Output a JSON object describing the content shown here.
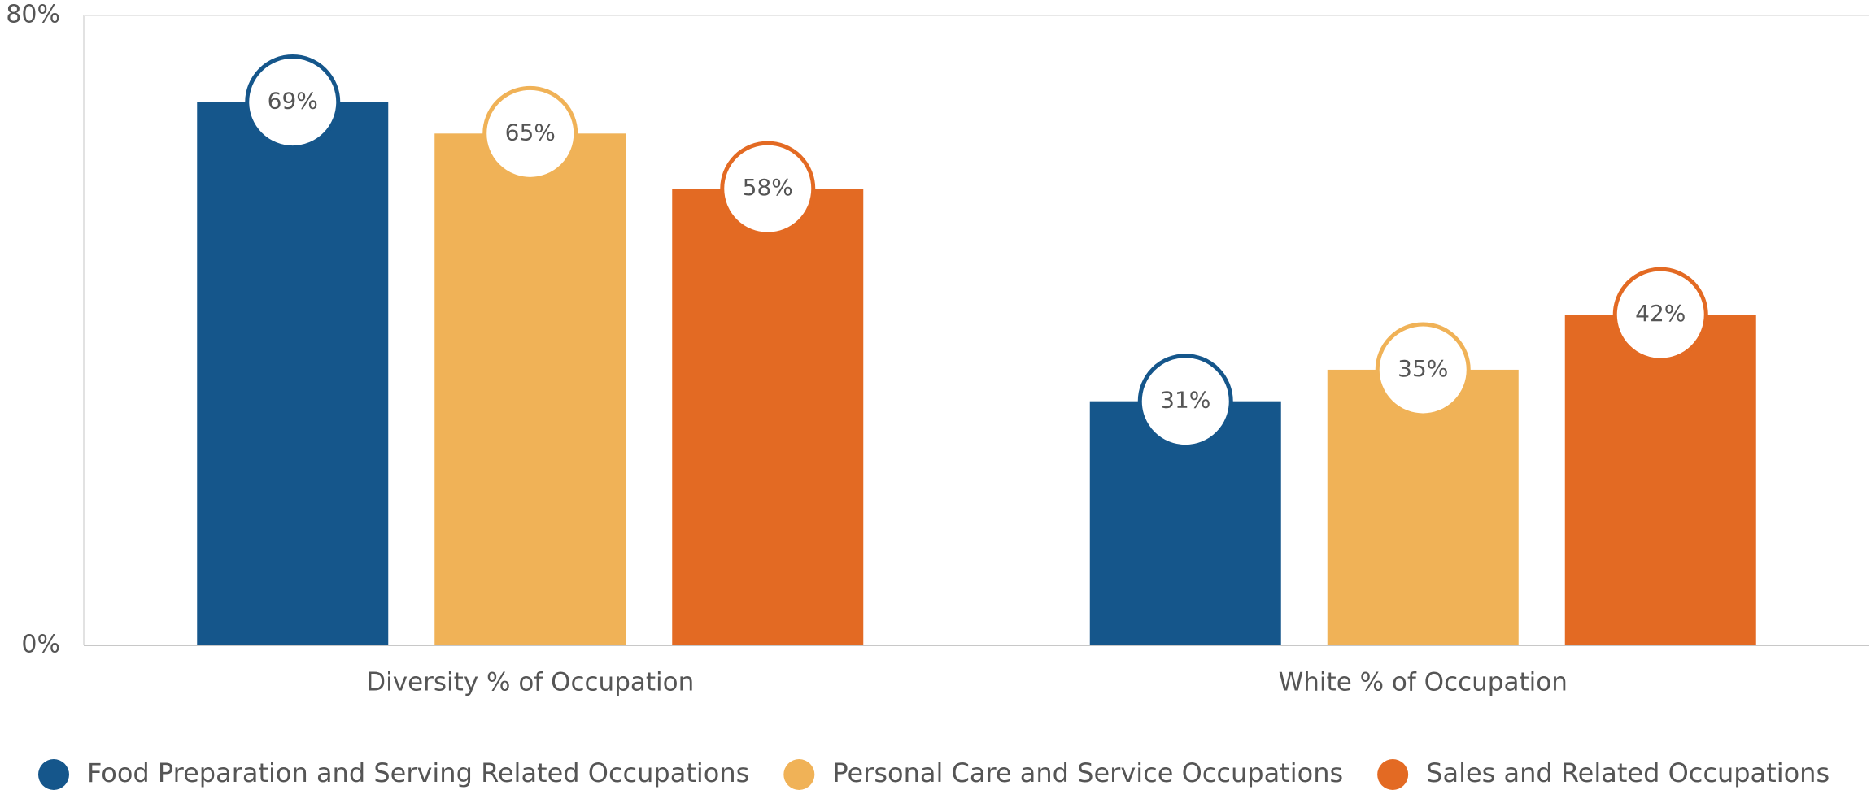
{
  "chart_data": {
    "type": "bar",
    "categories": [
      "Diversity % of Occupation",
      "White % of Occupation"
    ],
    "series": [
      {
        "name": "Food Preparation and Serving Related Occupations",
        "color": "#15568b",
        "values": [
          69,
          31
        ],
        "value_labels": [
          "69%",
          "31%"
        ]
      },
      {
        "name": "Personal Care and Service Occupations",
        "color": "#f0b257",
        "values": [
          65,
          35
        ],
        "value_labels": [
          "65%",
          "35%"
        ]
      },
      {
        "name": "Sales and Related Occupations",
        "color": "#e36a23",
        "values": [
          58,
          42
        ],
        "value_labels": [
          "58%",
          "42%"
        ]
      }
    ],
    "ylim": [
      0,
      80
    ],
    "yticks": [
      {
        "value": 0,
        "label": "0%"
      },
      {
        "value": 80,
        "label": "80%"
      }
    ],
    "grid": true,
    "legend": "bottom"
  }
}
